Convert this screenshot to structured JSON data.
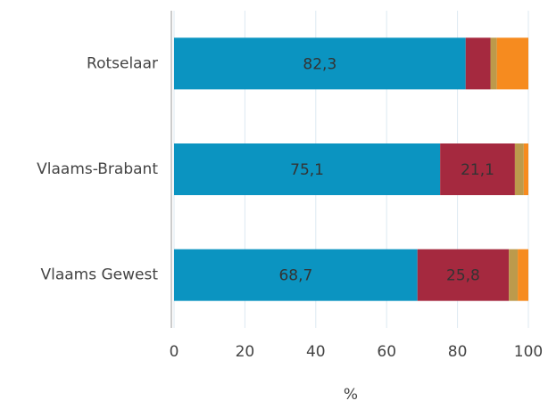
{
  "chart_data": {
    "type": "stacked-bar-horizontal",
    "categories": [
      "Rotselaar",
      "Vlaams-Brabant",
      "Vlaams Gewest"
    ],
    "series": [
      {
        "color": "#0b94c1",
        "values": [
          82.3,
          75.1,
          68.7
        ],
        "value_labels": [
          "82,3",
          "75,1",
          "68,7"
        ]
      },
      {
        "color": "#a5293f",
        "values": [
          7.0,
          21.1,
          25.8
        ],
        "value_labels": [
          null,
          "21,1",
          "25,8"
        ]
      },
      {
        "color": "#bc9a4c",
        "values": [
          1.8,
          2.5,
          2.5
        ]
      },
      {
        "color": "#f68b1f",
        "values": [
          8.9,
          1.3,
          3.0
        ]
      }
    ],
    "xlabel": "%",
    "xlim": [
      0,
      100
    ],
    "xticks": [
      0,
      20,
      40,
      60,
      80,
      100
    ],
    "grid": true
  }
}
